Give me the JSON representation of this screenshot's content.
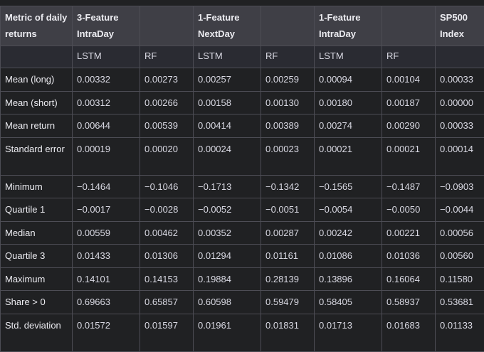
{
  "header": {
    "metric_label": "Metric of daily returns",
    "groups": [
      {
        "label": "3-Feature IntraDay"
      },
      {
        "label": ""
      },
      {
        "label": "1-Feature NextDay"
      },
      {
        "label": ""
      },
      {
        "label": "1-Feature IntraDay"
      },
      {
        "label": ""
      },
      {
        "label": "SP500 Index"
      }
    ],
    "models": [
      "",
      "LSTM",
      "RF",
      "LSTM",
      "RF",
      "LSTM",
      "RF",
      ""
    ]
  },
  "rows": [
    {
      "metric": "Mean (long)",
      "values": [
        "0.00332",
        "0.00273",
        "0.00257",
        "0.00259",
        "0.00094",
        "0.00104",
        "0.00033"
      ]
    },
    {
      "metric": "Mean (short)",
      "values": [
        "0.00312",
        "0.00266",
        "0.00158",
        "0.00130",
        "0.00180",
        "0.00187",
        "0.00000"
      ]
    },
    {
      "metric": "Mean return",
      "values": [
        "0.00644",
        "0.00539",
        "0.00414",
        "0.00389",
        "0.00274",
        "0.00290",
        "0.00033"
      ]
    },
    {
      "metric": "Standard error",
      "values": [
        "0.00019",
        "0.00020",
        "0.00024",
        "0.00023",
        "0.00021",
        "0.00021",
        "0.00014"
      ]
    },
    {
      "metric": "Minimum",
      "values": [
        "−0.1464",
        "−0.1046",
        "−0.1713",
        "−0.1342",
        "−0.1565",
        "−0.1487",
        "−0.0903"
      ]
    },
    {
      "metric": "Quartile 1",
      "values": [
        "−0.0017",
        "−0.0028",
        "−0.0052",
        "−0.0051",
        "−0.0054",
        "−0.0050",
        "−0.0044"
      ]
    },
    {
      "metric": "Median",
      "values": [
        "0.00559",
        "0.00462",
        "0.00352",
        "0.00287",
        "0.00242",
        "0.00221",
        "0.00056"
      ]
    },
    {
      "metric": "Quartile 3",
      "values": [
        "0.01433",
        "0.01306",
        "0.01294",
        "0.01161",
        "0.01086",
        "0.01036",
        "0.00560"
      ]
    },
    {
      "metric": "Maximum",
      "values": [
        "0.14101",
        "0.14153",
        "0.19884",
        "0.28139",
        "0.13896",
        "0.16064",
        "0.11580"
      ]
    },
    {
      "metric": "Share > 0",
      "values": [
        "0.69663",
        "0.65857",
        "0.60598",
        "0.59479",
        "0.58405",
        "0.58937",
        "0.53681"
      ]
    },
    {
      "metric": "Std. deviation",
      "values": [
        "0.01572",
        "0.01597",
        "0.01961",
        "0.01831",
        "0.01713",
        "0.01683",
        "0.01133"
      ]
    }
  ]
}
